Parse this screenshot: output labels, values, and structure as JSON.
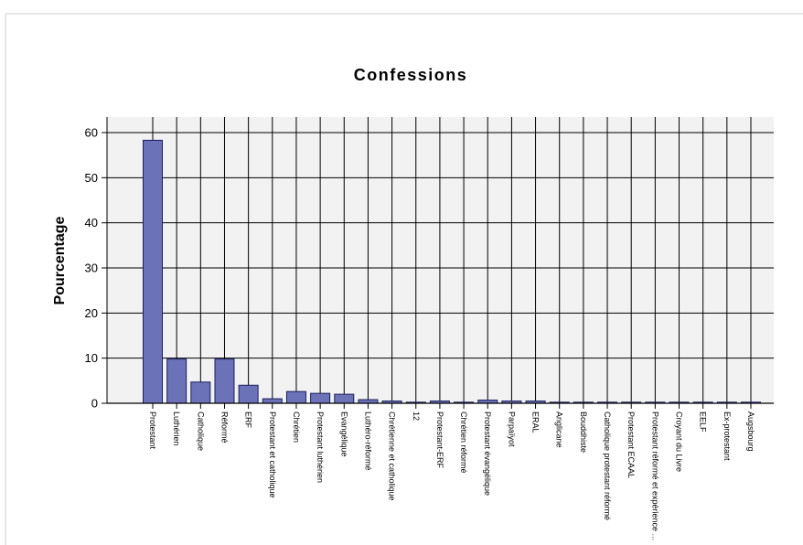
{
  "chart_data": {
    "type": "bar",
    "title": "Confessions",
    "xlabel": "",
    "ylabel": "Pourcentage",
    "ylim": [
      0,
      60
    ],
    "yticks": [
      0,
      10,
      20,
      30,
      40,
      50,
      60
    ],
    "grid": true,
    "categories": [
      "Protestant",
      "Luthérien",
      "Catholique",
      "Réformé",
      "ERF",
      "Protestant et catholique",
      "Chrétien",
      "Protestant luthérien",
      "Evangélique",
      "Luthéro-réformé",
      "Chrétienne et catholique",
      "12",
      "Protestant-ERF",
      "Chrétien réformé",
      "Protestant évangélique",
      "Parpaïyot",
      "ERAL",
      "Anglicane",
      "Bouddhiste",
      "Catholique protestant réformé",
      "Protestant ECAAL",
      "Protestant réformé et expérience ...",
      "Croyant du Livre",
      "EELF",
      "Ex-protestant",
      "Augsbourg"
    ],
    "values": [
      58.3,
      9.8,
      4.7,
      9.8,
      4.0,
      1.0,
      2.6,
      2.2,
      2.0,
      0.8,
      0.5,
      0.2,
      0.5,
      0.2,
      0.7,
      0.5,
      0.5,
      0.2,
      0.2,
      0.2,
      0.2,
      0.2,
      0.2,
      0.2,
      0.2,
      0.2
    ],
    "colors": {
      "bar_fill": "#6b72b8",
      "bar_stroke": "#1a1f5c",
      "plot_background": "#f2f2f2",
      "grid": "#000000"
    }
  }
}
